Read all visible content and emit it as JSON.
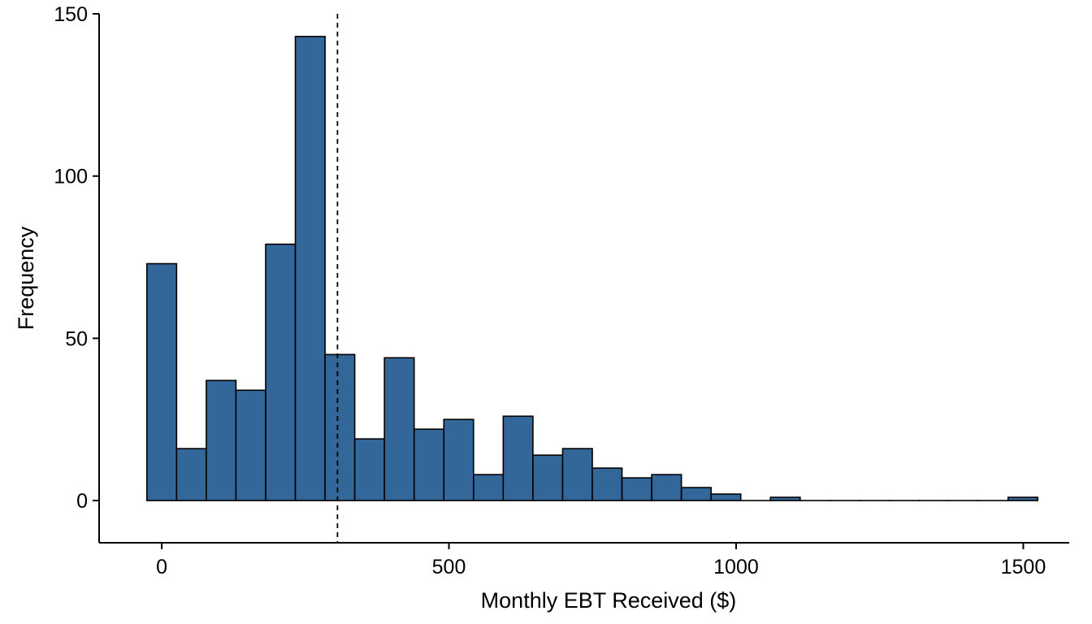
{
  "chart_data": {
    "type": "bar",
    "title": "",
    "xlabel": "Monthly EBT Received ($)",
    "ylabel": "Frequency",
    "bin_width": 51.7,
    "bin_start": -25.85,
    "bins": [
      {
        "x": 0,
        "count": 73
      },
      {
        "x": 51.7,
        "count": 16
      },
      {
        "x": 103.4,
        "count": 37
      },
      {
        "x": 155.1,
        "count": 34
      },
      {
        "x": 206.8,
        "count": 79
      },
      {
        "x": 258.5,
        "count": 143
      },
      {
        "x": 310.2,
        "count": 45
      },
      {
        "x": 361.9,
        "count": 19
      },
      {
        "x": 413.6,
        "count": 44
      },
      {
        "x": 465.3,
        "count": 22
      },
      {
        "x": 517.0,
        "count": 25
      },
      {
        "x": 568.7,
        "count": 8
      },
      {
        "x": 620.4,
        "count": 26
      },
      {
        "x": 672.1,
        "count": 14
      },
      {
        "x": 723.8,
        "count": 16
      },
      {
        "x": 775.5,
        "count": 10
      },
      {
        "x": 827.2,
        "count": 7
      },
      {
        "x": 878.9,
        "count": 8
      },
      {
        "x": 930.6,
        "count": 4
      },
      {
        "x": 982.3,
        "count": 2
      },
      {
        "x": 1034.0,
        "count": 0
      },
      {
        "x": 1085.7,
        "count": 1
      },
      {
        "x": 1137.4,
        "count": 0
      },
      {
        "x": 1189.1,
        "count": 0
      },
      {
        "x": 1240.8,
        "count": 0
      },
      {
        "x": 1292.5,
        "count": 0
      },
      {
        "x": 1344.2,
        "count": 0
      },
      {
        "x": 1395.9,
        "count": 0
      },
      {
        "x": 1447.6,
        "count": 0
      },
      {
        "x": 1499.3,
        "count": 1
      }
    ],
    "reference_line": {
      "x": 306,
      "style": "dashed"
    },
    "xlim": [
      -109,
      1580
    ],
    "ylim": [
      -13,
      150
    ],
    "xticks": [
      0,
      500,
      1000,
      1500
    ],
    "yticks": [
      0,
      50,
      100,
      150
    ],
    "grid": false,
    "colors": {
      "bar_fill": "#336699",
      "bar_stroke": "#000000",
      "axis": "#000000"
    }
  }
}
